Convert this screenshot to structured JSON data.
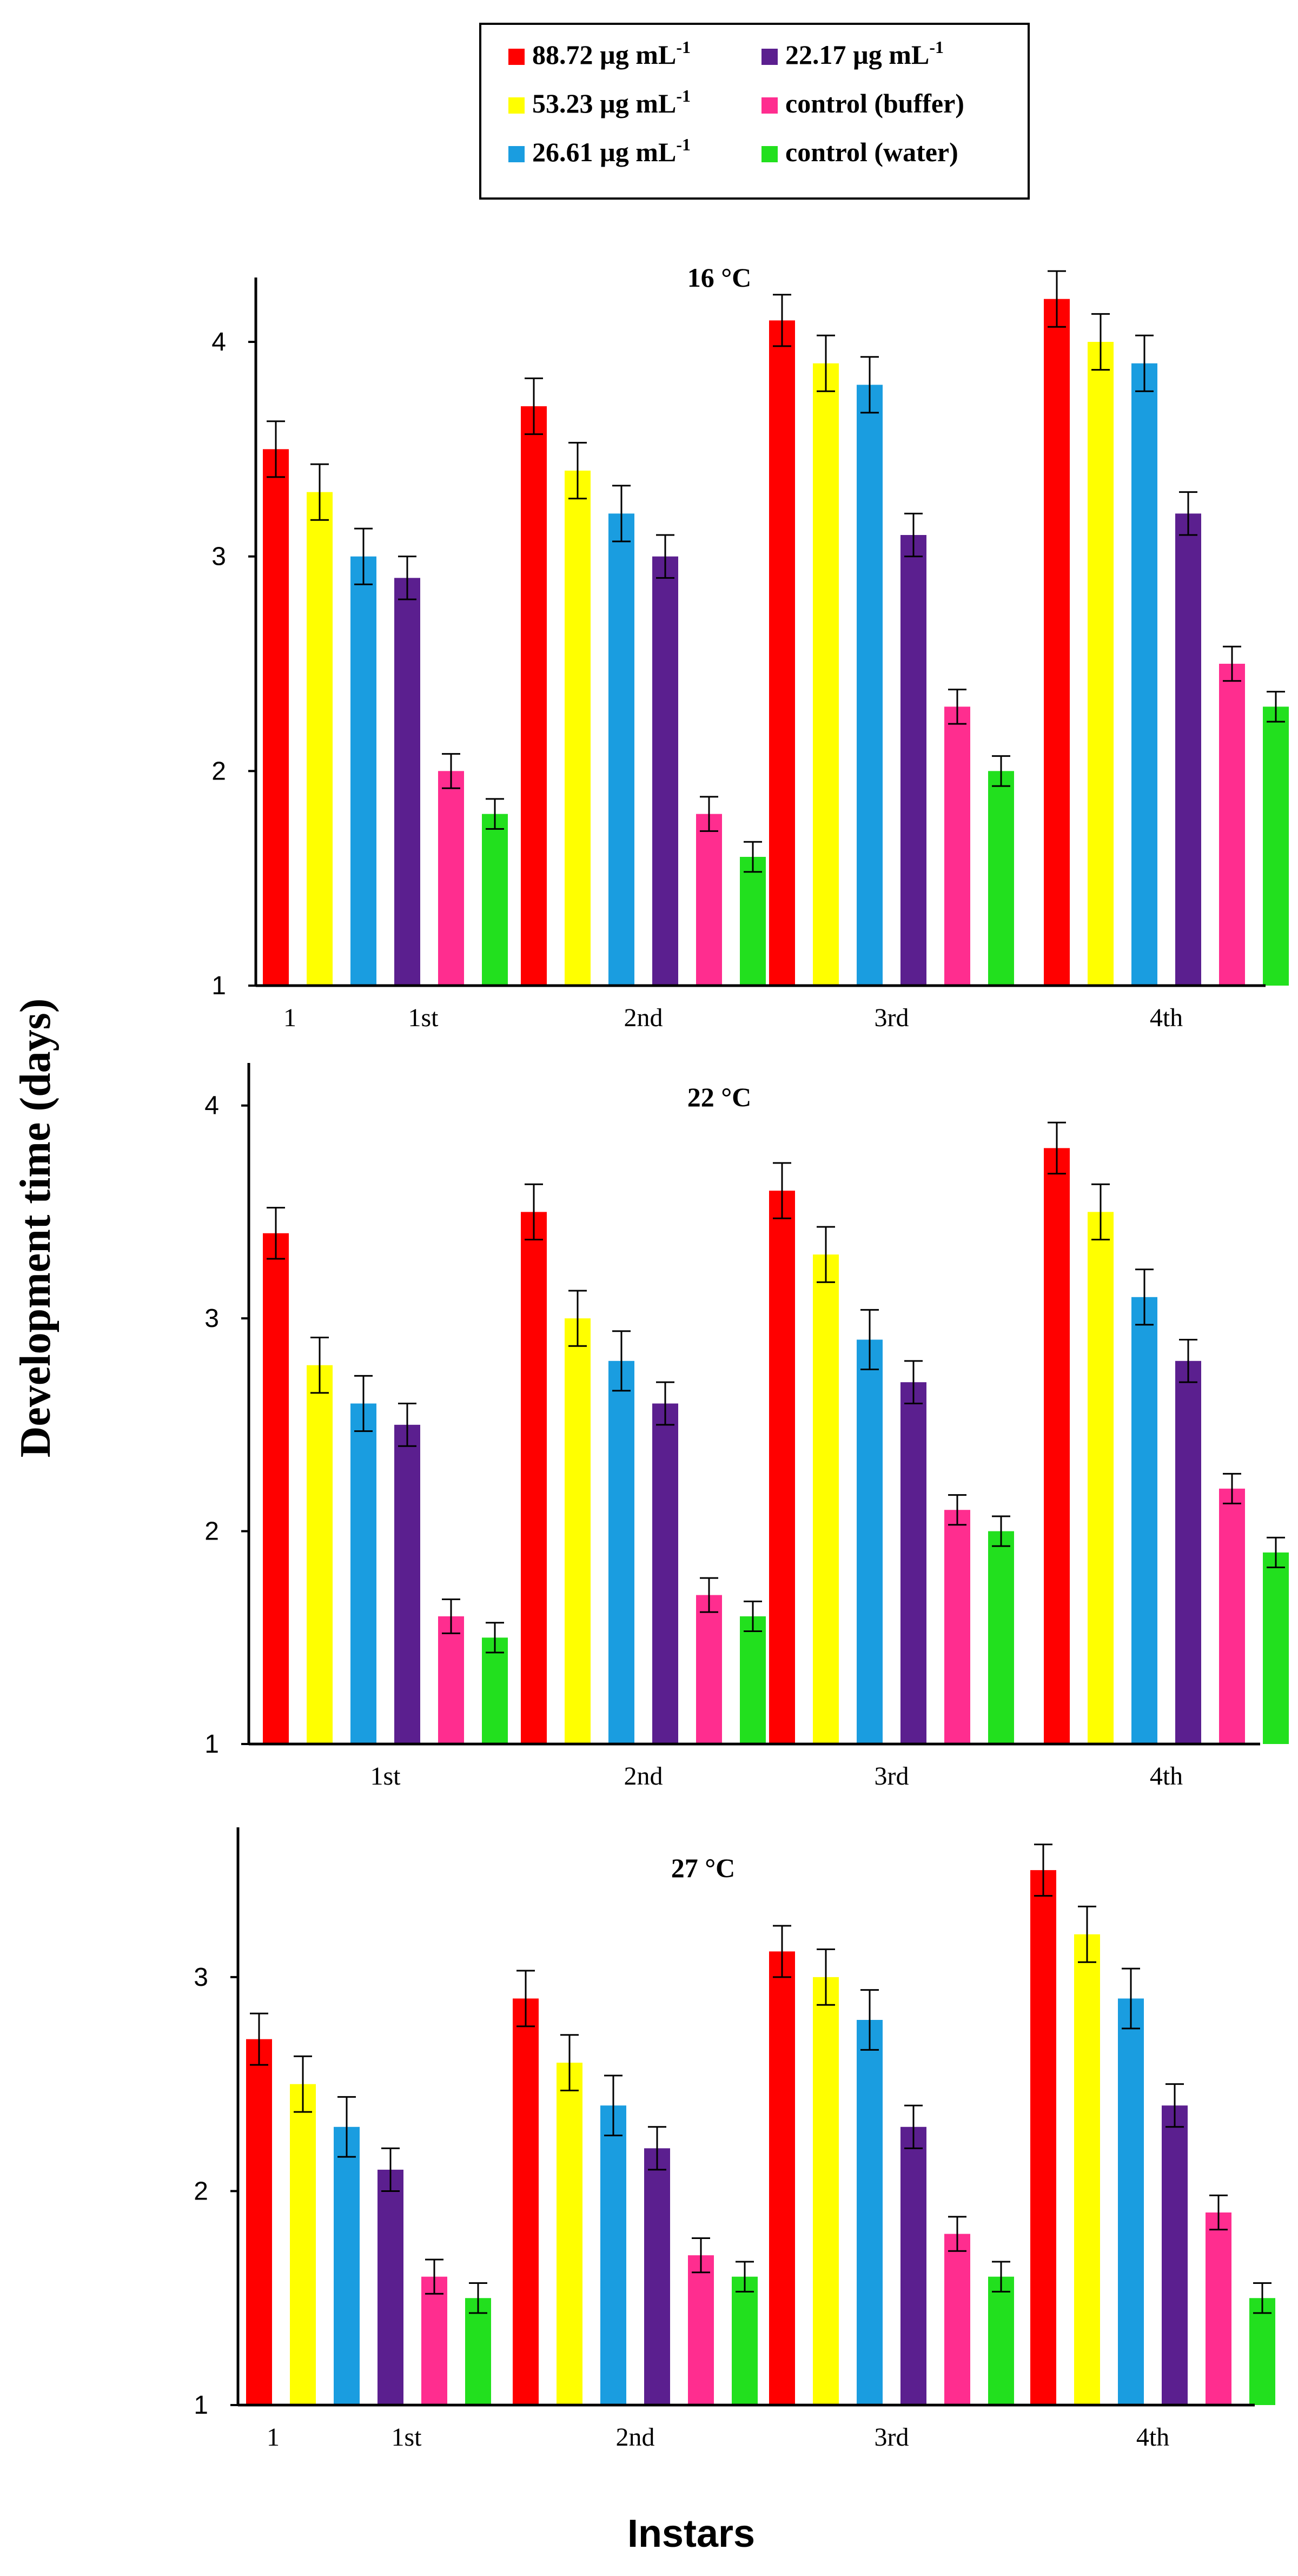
{
  "figure": {
    "ylabel": "Development time (days)",
    "xlabel": "Instars"
  },
  "legend": {
    "items": [
      {
        "label": "88.72 µg mL",
        "sup": "-1",
        "color": "#ff0000"
      },
      {
        "label": "22.17 µg mL",
        "sup": "-1",
        "color": "#5b1f8f"
      },
      {
        "label": "53.23 µg mL",
        "sup": "-1",
        "color": "#ffff00"
      },
      {
        "label": "control (buffer)",
        "sup": "",
        "color": "#ff2d8f"
      },
      {
        "label": "26.61 µg mL",
        "sup": "-1",
        "color": "#1a9de0"
      },
      {
        "label": "control (water)",
        "sup": "",
        "color": "#22e01e"
      }
    ]
  },
  "chart_data": [
    {
      "type": "bar",
      "title": "16 °C",
      "categories": [
        "1st",
        "2nd",
        "3rd",
        "4th"
      ],
      "extra_tick_label": "1",
      "ylim": [
        1,
        4.3
      ],
      "yticks": [
        1,
        2,
        3,
        4
      ],
      "series": [
        {
          "name": "88.72 µg mL-1",
          "color": "#ff0000",
          "values": [
            3.5,
            3.7,
            4.1,
            4.2
          ],
          "errors": [
            0.13,
            0.13,
            0.12,
            0.13
          ]
        },
        {
          "name": "53.23 µg mL-1",
          "color": "#ffff00",
          "values": [
            3.3,
            3.4,
            3.9,
            4.0
          ],
          "errors": [
            0.13,
            0.13,
            0.13,
            0.13
          ]
        },
        {
          "name": "26.61 µg mL-1",
          "color": "#1a9de0",
          "values": [
            3.0,
            3.2,
            3.8,
            3.9
          ],
          "errors": [
            0.13,
            0.13,
            0.13,
            0.13
          ]
        },
        {
          "name": "22.17 µg mL-1",
          "color": "#5b1f8f",
          "values": [
            2.9,
            3.0,
            3.1,
            3.2
          ],
          "errors": [
            0.1,
            0.1,
            0.1,
            0.1
          ]
        },
        {
          "name": "control (buffer)",
          "color": "#ff2d8f",
          "values": [
            2.0,
            1.8,
            2.3,
            2.5
          ],
          "errors": [
            0.08,
            0.08,
            0.08,
            0.08
          ]
        },
        {
          "name": "control (water)",
          "color": "#22e01e",
          "values": [
            1.8,
            1.6,
            2.0,
            2.3
          ],
          "errors": [
            0.07,
            0.07,
            0.07,
            0.07
          ]
        }
      ]
    },
    {
      "type": "bar",
      "title": "22 °C",
      "categories": [
        "1st",
        "2nd",
        "3rd",
        "4th"
      ],
      "extra_tick_label": "",
      "ylim": [
        1,
        4.2
      ],
      "yticks": [
        1,
        2,
        3,
        4
      ],
      "series": [
        {
          "name": "88.72 µg mL-1",
          "color": "#ff0000",
          "values": [
            3.4,
            3.5,
            3.6,
            3.8
          ],
          "errors": [
            0.12,
            0.13,
            0.13,
            0.12
          ]
        },
        {
          "name": "53.23 µg mL-1",
          "color": "#ffff00",
          "values": [
            2.78,
            3.0,
            3.3,
            3.5
          ],
          "errors": [
            0.13,
            0.13,
            0.13,
            0.13
          ]
        },
        {
          "name": "26.61 µg mL-1",
          "color": "#1a9de0",
          "values": [
            2.6,
            2.8,
            2.9,
            3.1
          ],
          "errors": [
            0.13,
            0.14,
            0.14,
            0.13
          ]
        },
        {
          "name": "22.17 µg mL-1",
          "color": "#5b1f8f",
          "values": [
            2.5,
            2.6,
            2.7,
            2.8
          ],
          "errors": [
            0.1,
            0.1,
            0.1,
            0.1
          ]
        },
        {
          "name": "control (buffer)",
          "color": "#ff2d8f",
          "values": [
            1.6,
            1.7,
            2.1,
            2.2
          ],
          "errors": [
            0.08,
            0.08,
            0.07,
            0.07
          ]
        },
        {
          "name": "control (water)",
          "color": "#22e01e",
          "values": [
            1.5,
            1.6,
            2.0,
            1.9
          ],
          "errors": [
            0.07,
            0.07,
            0.07,
            0.07
          ]
        }
      ]
    },
    {
      "type": "bar",
      "title": "27 °C",
      "categories": [
        "1st",
        "2nd",
        "3rd",
        "4th"
      ],
      "extra_tick_label": "1",
      "ylim": [
        1,
        3.7
      ],
      "yticks": [
        1,
        2,
        3
      ],
      "series": [
        {
          "name": "88.72 µg mL-1",
          "color": "#ff0000",
          "values": [
            2.71,
            2.9,
            3.12,
            3.5
          ],
          "errors": [
            0.12,
            0.13,
            0.12,
            0.12
          ]
        },
        {
          "name": "53.23 µg mL-1",
          "color": "#ffff00",
          "values": [
            2.5,
            2.6,
            3.0,
            3.2
          ],
          "errors": [
            0.13,
            0.13,
            0.13,
            0.13
          ]
        },
        {
          "name": "26.61 µg mL-1",
          "color": "#1a9de0",
          "values": [
            2.3,
            2.4,
            2.8,
            2.9
          ],
          "errors": [
            0.14,
            0.14,
            0.14,
            0.14
          ]
        },
        {
          "name": "22.17 µg mL-1",
          "color": "#5b1f8f",
          "values": [
            2.1,
            2.2,
            2.3,
            2.4
          ],
          "errors": [
            0.1,
            0.1,
            0.1,
            0.1
          ]
        },
        {
          "name": "control (buffer)",
          "color": "#ff2d8f",
          "values": [
            1.6,
            1.7,
            1.8,
            1.9
          ],
          "errors": [
            0.08,
            0.08,
            0.08,
            0.08
          ]
        },
        {
          "name": "control (water)",
          "color": "#22e01e",
          "values": [
            1.5,
            1.6,
            1.6,
            1.5
          ],
          "errors": [
            0.07,
            0.07,
            0.07,
            0.07
          ]
        }
      ]
    }
  ]
}
